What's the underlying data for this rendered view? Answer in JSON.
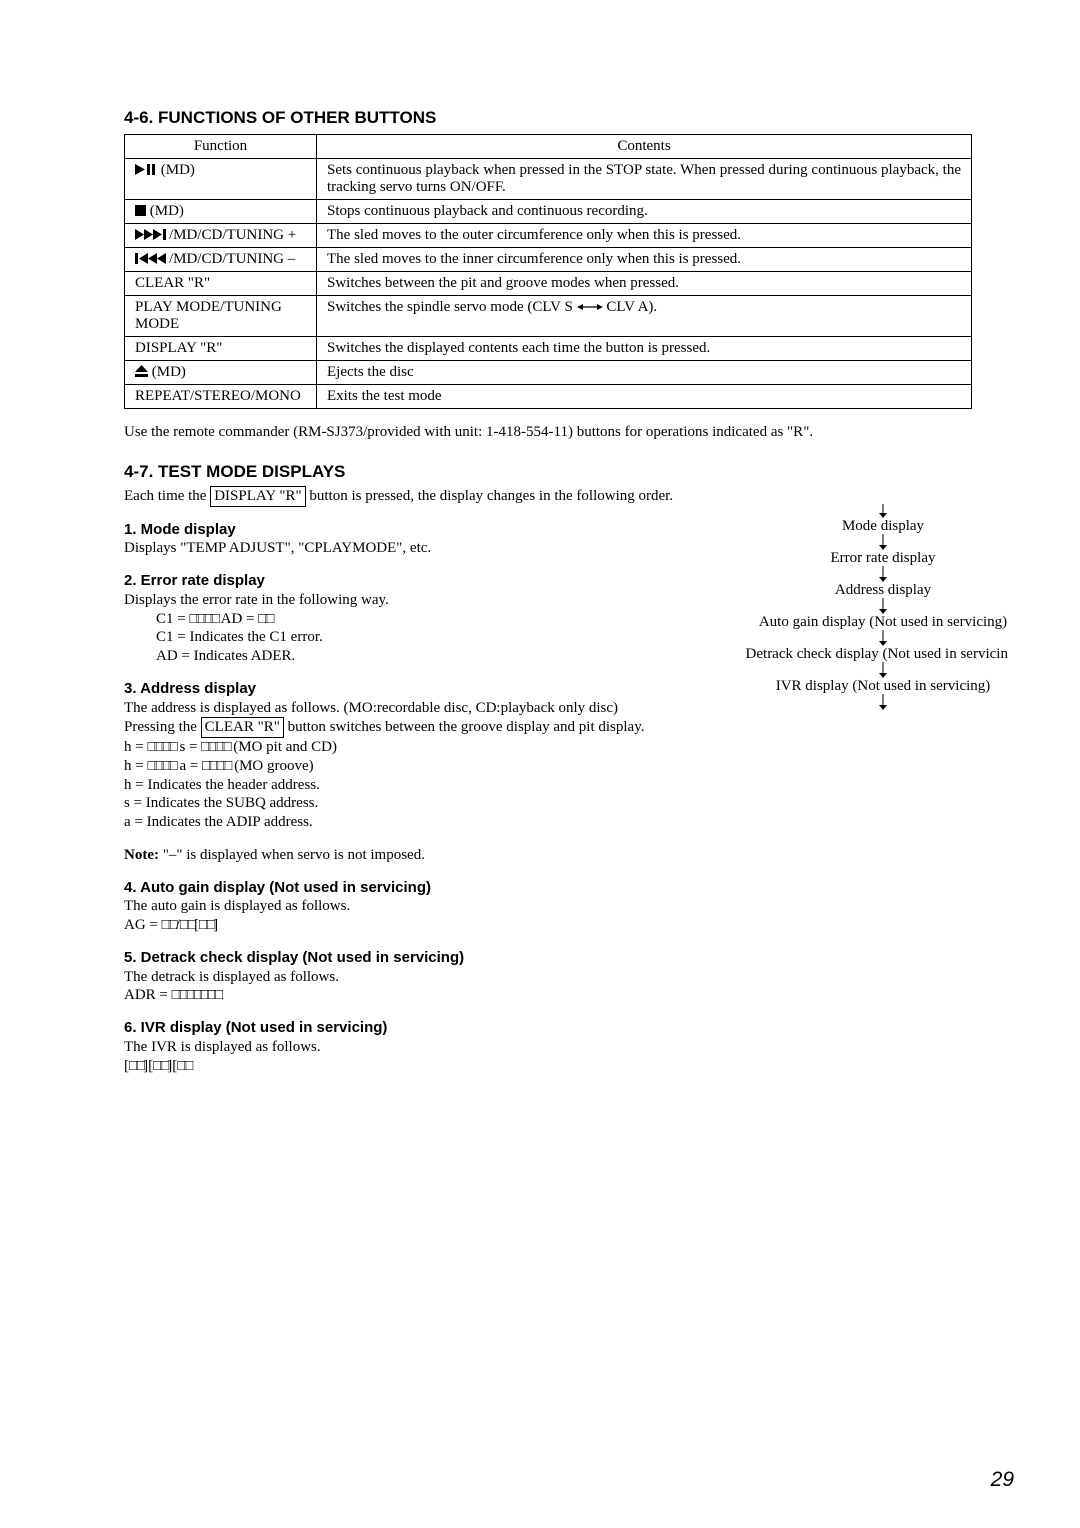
{
  "section46": {
    "title": "4-6. FUNCTIONS OF OTHER BUTTONS",
    "headers": [
      "Function",
      "Contents"
    ],
    "rows": [
      {
        "fn_icon": "play-pause",
        "fn_suffix": " (MD)",
        "contents": "Sets continuous playback when pressed in the STOP state. When pressed during continuous playback, the tracking servo turns ON/OFF."
      },
      {
        "fn_icon": "stop",
        "fn_suffix": " (MD)",
        "contents": "Stops continuous playback and continuous recording."
      },
      {
        "fn_icon": "ff-next",
        "fn_suffix": "/MD/CD/TUNING +",
        "contents": "The sled moves to the outer circumference only when this is pressed."
      },
      {
        "fn_icon": "prev-rew",
        "fn_suffix": "/MD/CD/TUNING –",
        "contents": "The sled moves to the inner circumference only when this is pressed."
      },
      {
        "fn_text": "CLEAR \"R\"",
        "contents": "Switches between the pit and groove modes when pressed."
      },
      {
        "fn_text": "PLAY MODE/TUNING MODE",
        "contents_pre": "Switches the spindle servo mode (CLV S ",
        "contents_post": " CLV A).",
        "bidir": true
      },
      {
        "fn_text": "DISPLAY \"R\"",
        "contents": "Switches the displayed contents each time the button is pressed.",
        "col1_indent": true
      },
      {
        "fn_icon": "eject",
        "fn_suffix": " (MD)",
        "contents": "Ejects the disc"
      },
      {
        "fn_text": "REPEAT/STEREO/MONO",
        "contents": "Exits the test mode"
      }
    ],
    "note": "Use the remote commander (RM-SJ373/provided with unit: 1-418-554-11) buttons for operations indicated as \"R\"."
  },
  "section47": {
    "title": "4-7. TEST MODE DISPLAYS",
    "intro_pre": "Each time the ",
    "intro_box": "DISPLAY \"R\"",
    "intro_post": " button is pressed, the display changes in the following order.",
    "items": [
      {
        "title": "1. Mode display",
        "lines": [
          "Displays \"TEMP ADJUST\", \"CPLAYMODE\", etc."
        ]
      },
      {
        "title": "2. Error rate display",
        "lines": [
          "Displays the error rate in the following way."
        ],
        "indent_lines": [
          {
            "pre": "C1 = ",
            "sq": 4,
            "mid": " AD = ",
            "sq2": 2
          },
          {
            "text": "C1 = Indicates the C1 error."
          },
          {
            "text": "AD = Indicates ADER."
          }
        ]
      },
      {
        "title": "3. Address display",
        "lines": [
          "The address is displayed as follows. (MO:recordable disc, CD:playback only disc)"
        ],
        "press_pre": "Pressing the ",
        "press_box": "CLEAR \"R\"",
        "press_post": " button switches between the groove display and pit display.",
        "formulas": [
          {
            "pre": "h = ",
            "sq": 4,
            "mid": " s = ",
            "sq2": 4,
            "post": " (MO pit and CD)"
          },
          {
            "pre": "h = ",
            "sq": 4,
            "mid": " a = ",
            "sq2": 4,
            "post": " (MO groove)"
          }
        ],
        "after": [
          "h = Indicates the header address.",
          "s = Indicates the SUBQ address.",
          "a = Indicates the ADIP address."
        ]
      }
    ],
    "note": "Note: \"–\" is displayed when servo is not imposed.",
    "note_label": "Note:",
    "note_rest": " \"–\" is displayed when servo is not imposed.",
    "items2": [
      {
        "title": "4. Auto gain display (Not used in servicing)",
        "line": "The auto gain is displayed as follows.",
        "formula_pre": "AG = ",
        "pattern": "2/2[2]"
      },
      {
        "title": "5. Detrack check display (Not used in servicing)",
        "line": "The detrack is displayed as follows.",
        "formula_pre": "ADR = ",
        "pattern": "7"
      },
      {
        "title": "6. IVR display (Not used in servicing)",
        "line": "The IVR is displayed as follows.",
        "pattern": "[2][2][2"
      }
    ]
  },
  "flow": [
    "Mode display",
    "Error rate display",
    "Address display",
    "Auto gain display (Not used in servicing)",
    "Detrack check display (Not used in servicing)",
    "IVR display (Not used in servicing)"
  ],
  "page": "29"
}
